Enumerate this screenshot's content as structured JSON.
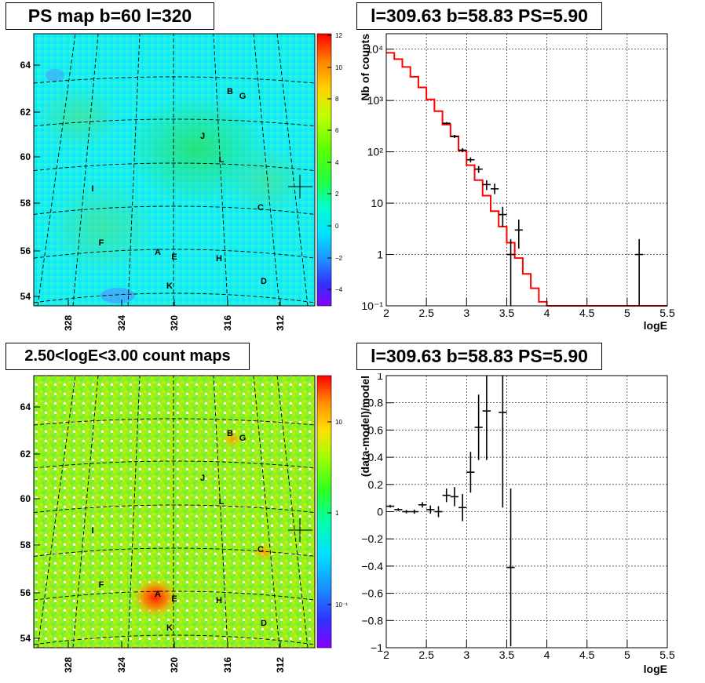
{
  "panels": {
    "ps_map": {
      "title": "PS map b=60 l=320",
      "x_ticks": [
        "328",
        "324",
        "320",
        "316",
        "312"
      ],
      "y_ticks": [
        "54",
        "56",
        "58",
        "60",
        "62",
        "64"
      ],
      "colorbar_ticks": [
        "12",
        "10",
        "8",
        "6",
        "4",
        "2",
        "0",
        "−2",
        "−4"
      ],
      "sources": [
        "A",
        "B",
        "C",
        "D",
        "E",
        "F",
        "G",
        "H",
        "I",
        "J",
        "K",
        "L"
      ]
    },
    "count_map": {
      "title": "2.50<logE<3.00 count maps",
      "x_ticks": [
        "328",
        "324",
        "320",
        "316",
        "312"
      ],
      "y_ticks": [
        "54",
        "56",
        "58",
        "60",
        "62",
        "64"
      ],
      "colorbar_ticks": [
        "10",
        "1",
        "10⁻¹"
      ],
      "sources": [
        "A",
        "B",
        "C",
        "D",
        "E",
        "F",
        "G",
        "H",
        "I",
        "J",
        "K",
        "L"
      ]
    },
    "spectrum": {
      "title": "l=309.63 b=58.83 PS=5.90"
    },
    "residual": {
      "title": "l=309.63 b=58.83 PS=5.90"
    }
  },
  "chart_data": [
    {
      "type": "line",
      "panel": "spectrum",
      "title": "l=309.63 b=58.83 PS=5.90",
      "xlabel": "logE",
      "ylabel": "Nb of counts",
      "xlim": [
        2,
        5.5
      ],
      "ylim": [
        0.1,
        20000
      ],
      "log_y": true,
      "grid": true,
      "x_ticks": [
        "2",
        "2.5",
        "3",
        "3.5",
        "4",
        "4.5",
        "5",
        "5.5"
      ],
      "y_ticks": [
        "10⁻¹",
        "1",
        "10",
        "10²",
        "10³",
        "10⁴"
      ],
      "series": [
        {
          "kind": "model_histogram",
          "color": "#ff0000",
          "bin_edges": [
            2.0,
            2.1,
            2.2,
            2.3,
            2.4,
            2.5,
            2.6,
            2.7,
            2.8,
            2.9,
            3.0,
            3.1,
            3.2,
            3.3,
            3.4,
            3.5,
            3.6,
            3.7,
            3.8,
            3.9,
            4.0,
            5.5
          ],
          "values": [
            8500,
            6400,
            4500,
            2900,
            1800,
            1050,
            620,
            340,
            200,
            105,
            55,
            28,
            14,
            7,
            3.5,
            1.7,
            0.85,
            0.42,
            0.22,
            0.12,
            0.1
          ]
        },
        {
          "kind": "data_points",
          "color": "#000000",
          "points": [
            {
              "x": 2.75,
              "y": 360,
              "lo": 340,
              "hi": 380
            },
            {
              "x": 2.85,
              "y": 200,
              "lo": 186,
              "hi": 214
            },
            {
              "x": 2.95,
              "y": 108,
              "lo": 98,
              "hi": 118
            },
            {
              "x": 3.05,
              "y": 70,
              "lo": 62,
              "hi": 78
            },
            {
              "x": 3.15,
              "y": 46,
              "lo": 39,
              "hi": 53
            },
            {
              "x": 3.25,
              "y": 23,
              "lo": 18,
              "hi": 28
            },
            {
              "x": 3.35,
              "y": 19,
              "lo": 15,
              "hi": 24
            },
            {
              "x": 3.45,
              "y": 6,
              "lo": 3.5,
              "hi": 8.5
            },
            {
              "x": 3.55,
              "y": 1,
              "lo": 0.1,
              "hi": 2
            },
            {
              "x": 3.65,
              "y": 3,
              "lo": 1.3,
              "hi": 4.8
            },
            {
              "x": 5.15,
              "y": 1,
              "lo": 0.1,
              "hi": 2
            }
          ]
        }
      ]
    },
    {
      "type": "scatter",
      "panel": "residual",
      "title": "l=309.63 b=58.83 PS=5.90",
      "xlabel": "logE",
      "ylabel": "(data-model)/model",
      "xlim": [
        2,
        5.5
      ],
      "ylim": [
        -1,
        1
      ],
      "grid": true,
      "x_ticks": [
        "2",
        "2.5",
        "3",
        "3.5",
        "4",
        "4.5",
        "5",
        "5.5"
      ],
      "y_ticks": [
        "−1",
        "−0.8",
        "−0.6",
        "−0.4",
        "−0.2",
        "0",
        "0.2",
        "0.4",
        "0.6",
        "0.8",
        "1"
      ],
      "series": [
        {
          "kind": "data_points",
          "color": "#000000",
          "points": [
            {
              "x": 2.05,
              "y": 0.04,
              "err": 0.01
            },
            {
              "x": 2.15,
              "y": 0.015,
              "err": 0.01
            },
            {
              "x": 2.25,
              "y": 0.0,
              "err": 0.012
            },
            {
              "x": 2.35,
              "y": 0.0,
              "err": 0.015
            },
            {
              "x": 2.45,
              "y": 0.05,
              "err": 0.02
            },
            {
              "x": 2.55,
              "y": 0.015,
              "err": 0.03
            },
            {
              "x": 2.65,
              "y": 0.0,
              "err": 0.04
            },
            {
              "x": 2.75,
              "y": 0.12,
              "err": 0.05
            },
            {
              "x": 2.85,
              "y": 0.11,
              "err": 0.07
            },
            {
              "x": 2.95,
              "y": 0.03,
              "err": 0.1
            },
            {
              "x": 3.05,
              "y": 0.29,
              "err": 0.15
            },
            {
              "x": 3.15,
              "y": 0.62,
              "err": 0.24
            },
            {
              "x": 3.25,
              "y": 0.74,
              "err": 0.36
            },
            {
              "x": 3.45,
              "y": 0.73,
              "err": 0.7
            },
            {
              "x": 3.55,
              "y": -0.41,
              "err": 0.58
            }
          ]
        }
      ]
    }
  ]
}
